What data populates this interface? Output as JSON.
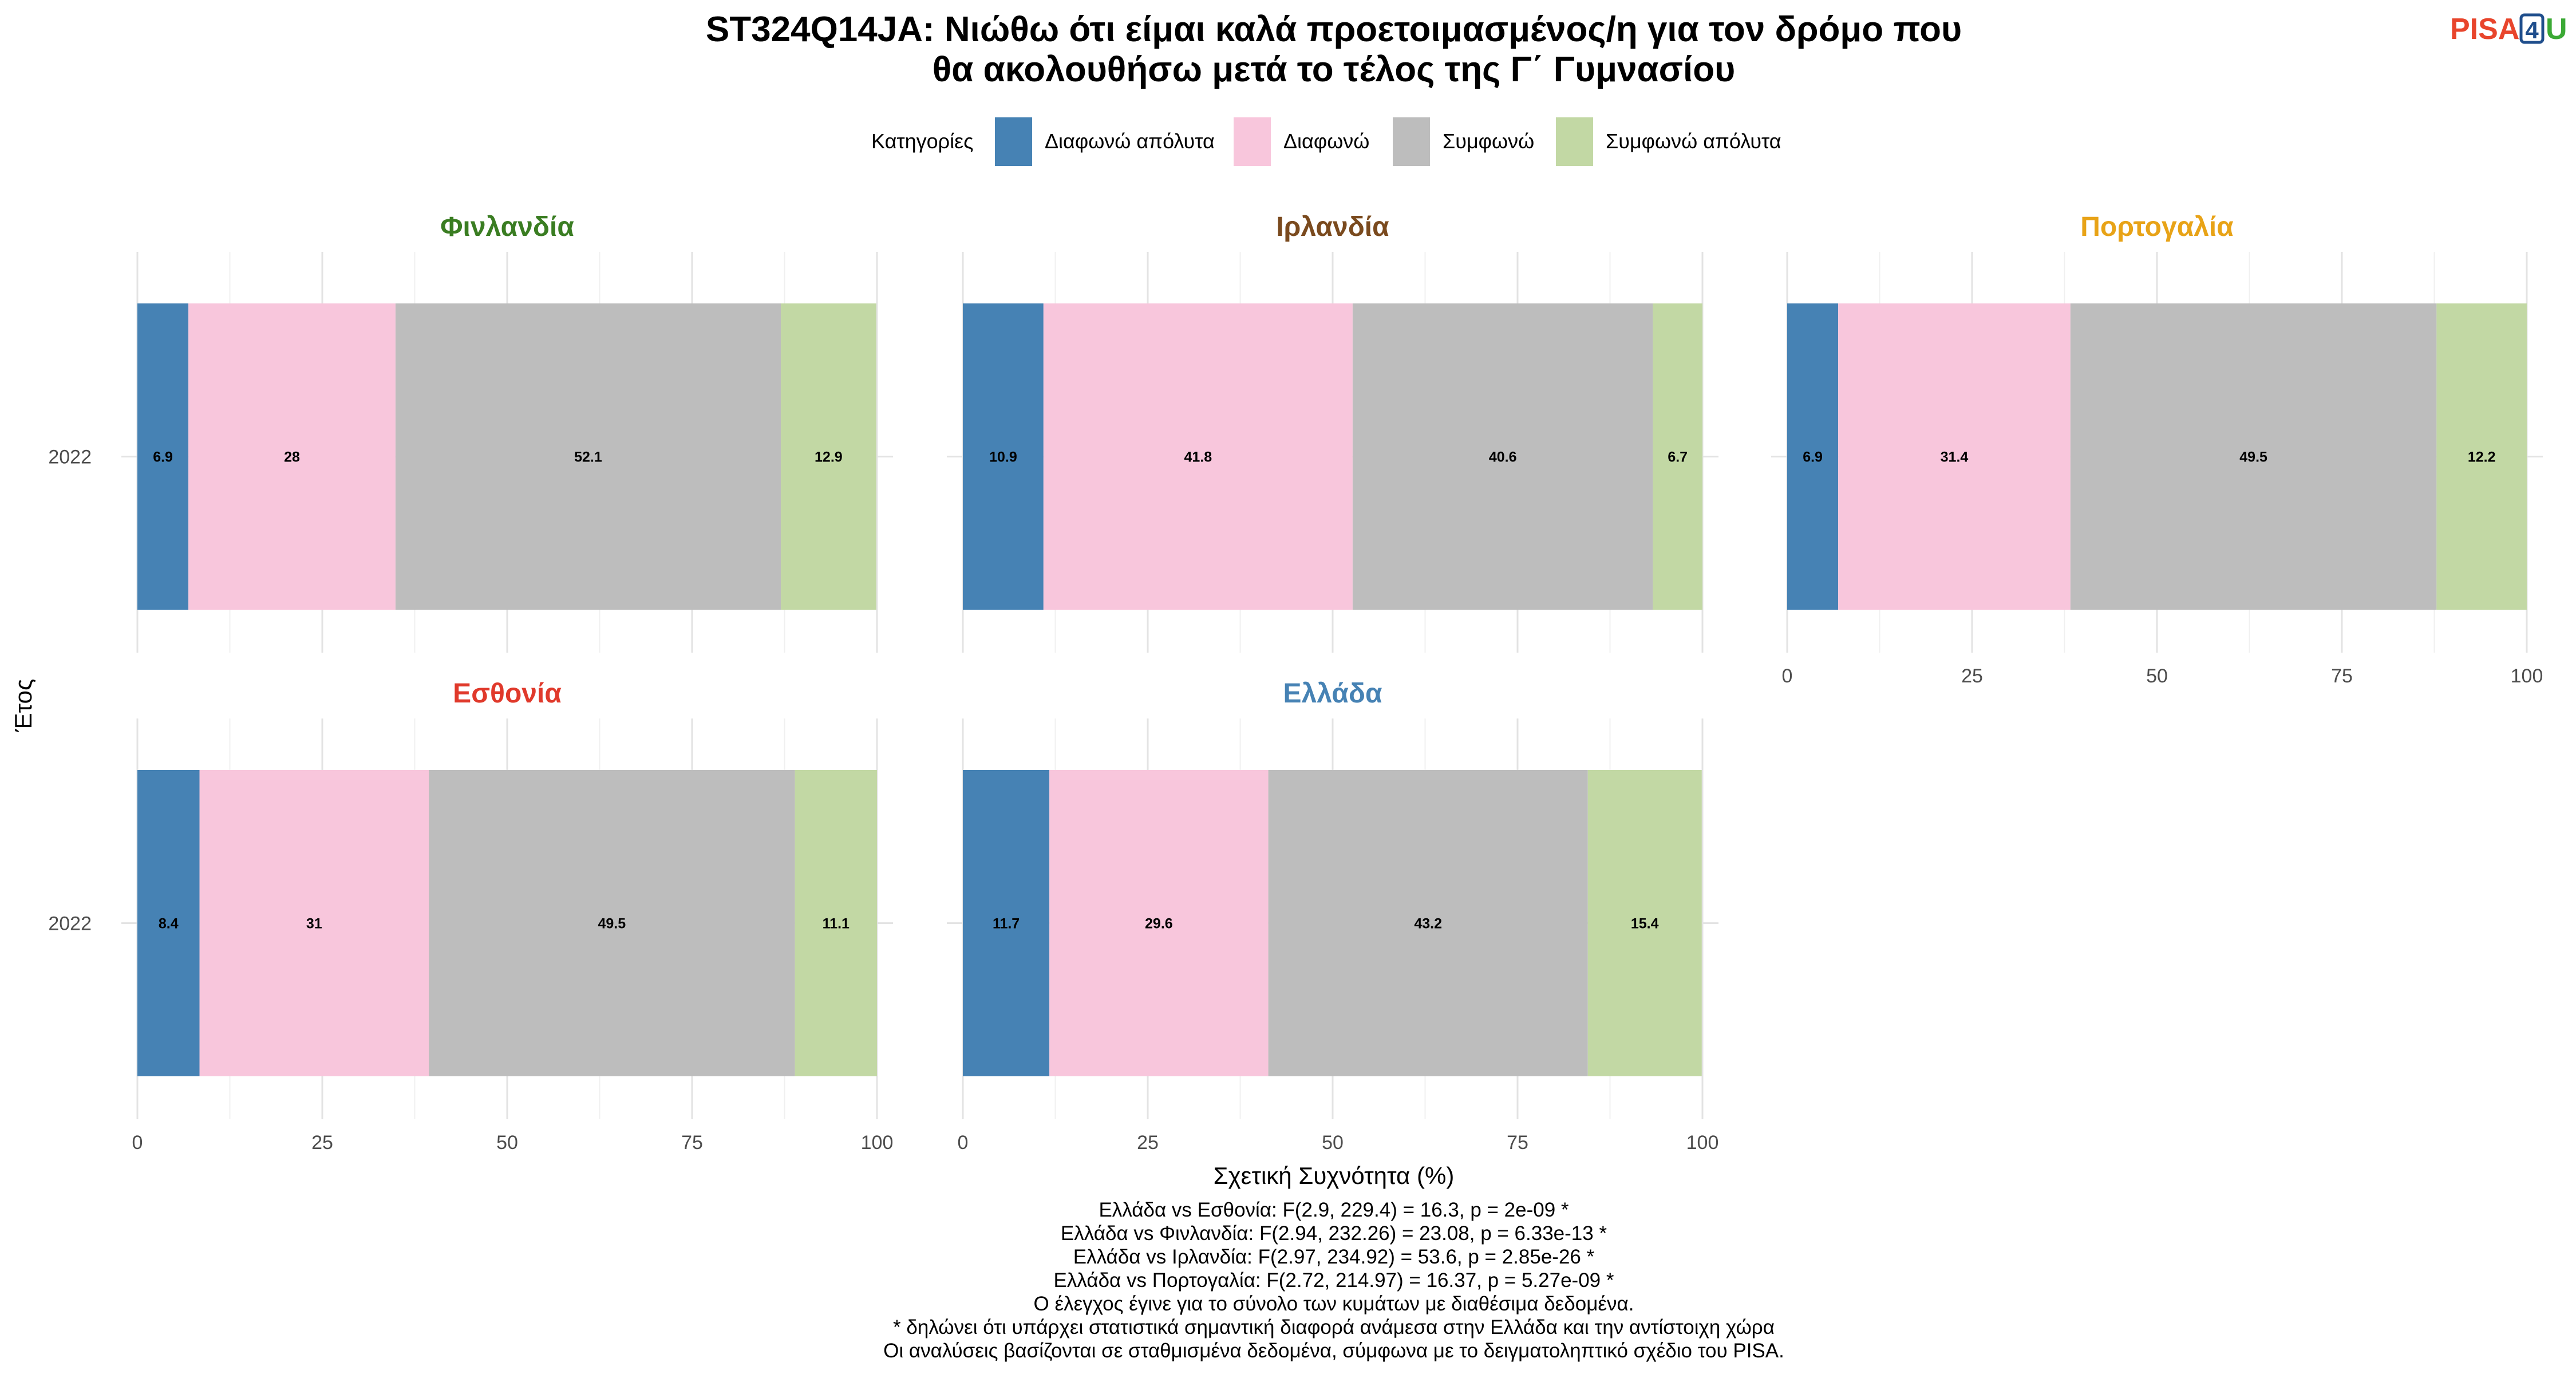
{
  "title_lines": [
    "ST324Q14JA: Νιώθω ότι είμαι καλά προετοιμασμένος/η για τον δρόμο που",
    "θα ακολουθήσω μετά το τέλος της Γ΄ Γυμνασίου"
  ],
  "legend": {
    "title": "Κατηγορίες",
    "items": [
      {
        "label": "Διαφωνώ απόλυτα",
        "color": "#4682B4"
      },
      {
        "label": "Διαφωνώ",
        "color": "#F8C6DC"
      },
      {
        "label": "Συμφωνώ",
        "color": "#BDBDBD"
      },
      {
        "label": "Συμφωνώ απόλυτα",
        "color": "#C2D8A4"
      }
    ]
  },
  "logo": {
    "text_a": "PISA",
    "text_b": "4",
    "text_c": "U",
    "color_a": "#E8452C",
    "color_b": "#1F4E8C",
    "color_c": "#3BA935"
  },
  "chart_data": {
    "type": "bar",
    "orientation": "horizontal-stacked",
    "xlabel": "Σχετική Συχνότητα (%)",
    "ylabel": "Έτος",
    "xlim": [
      0,
      100
    ],
    "xticks": [
      0,
      25,
      50,
      75,
      100
    ],
    "categories": [
      "Διαφωνώ απόλυτα",
      "Διαφωνώ",
      "Συμφωνώ",
      "Συμφωνώ απόλυτα"
    ],
    "panels": [
      {
        "country": "Φινλανδία",
        "color": "#3A7D22",
        "year": "2022",
        "values": [
          6.9,
          28,
          52.1,
          12.9
        ],
        "labels": [
          "6.9",
          "28",
          "52.1",
          "12.9"
        ]
      },
      {
        "country": "Ιρλανδία",
        "color": "#7A4A1E",
        "year": "2022",
        "values": [
          10.9,
          41.8,
          40.6,
          6.7
        ],
        "labels": [
          "10.9",
          "41.8",
          "40.6",
          "6.7"
        ]
      },
      {
        "country": "Πορτογαλία",
        "color": "#E8A317",
        "year": "2022",
        "values": [
          6.9,
          31.4,
          49.5,
          12.2
        ],
        "labels": [
          "6.9",
          "31.4",
          "49.5",
          "12.2"
        ]
      },
      {
        "country": "Εσθονία",
        "color": "#E0392B",
        "year": "2022",
        "values": [
          8.4,
          31,
          49.5,
          11.1
        ],
        "labels": [
          "8.4",
          "31",
          "49.5",
          "11.1"
        ]
      },
      {
        "country": "Ελλάδα",
        "color": "#4682B4",
        "year": "2022",
        "values": [
          11.7,
          29.6,
          43.2,
          15.4
        ],
        "labels": [
          "11.7",
          "29.6",
          "43.2",
          "15.4"
        ]
      }
    ]
  },
  "notes": [
    "Ελλάδα vs Εσθονία: F(2.9, 229.4) = 16.3, p = 2e-09 *",
    "Ελλάδα vs Φινλανδία: F(2.94, 232.26) = 23.08, p = 6.33e-13 *",
    "Ελλάδα vs Ιρλανδία: F(2.97, 234.92) = 53.6, p = 2.85e-26 *",
    "Ελλάδα vs Πορτογαλία: F(2.72, 214.97) = 16.37, p = 5.27e-09 *",
    "Ο έλεγχος έγινε για το σύνολο των κυμάτων με διαθέσιμα δεδομένα.",
    "* δηλώνει ότι υπάρχει στατιστικά σημαντική διαφορά ανάμεσα στην Ελλάδα και την αντίστοιχη χώρα",
    "Οι αναλύσεις βασίζονται σε σταθμισμένα δεδομένα, σύμφωνα με το δειγματοληπτικό σχέδιο του PISA."
  ]
}
